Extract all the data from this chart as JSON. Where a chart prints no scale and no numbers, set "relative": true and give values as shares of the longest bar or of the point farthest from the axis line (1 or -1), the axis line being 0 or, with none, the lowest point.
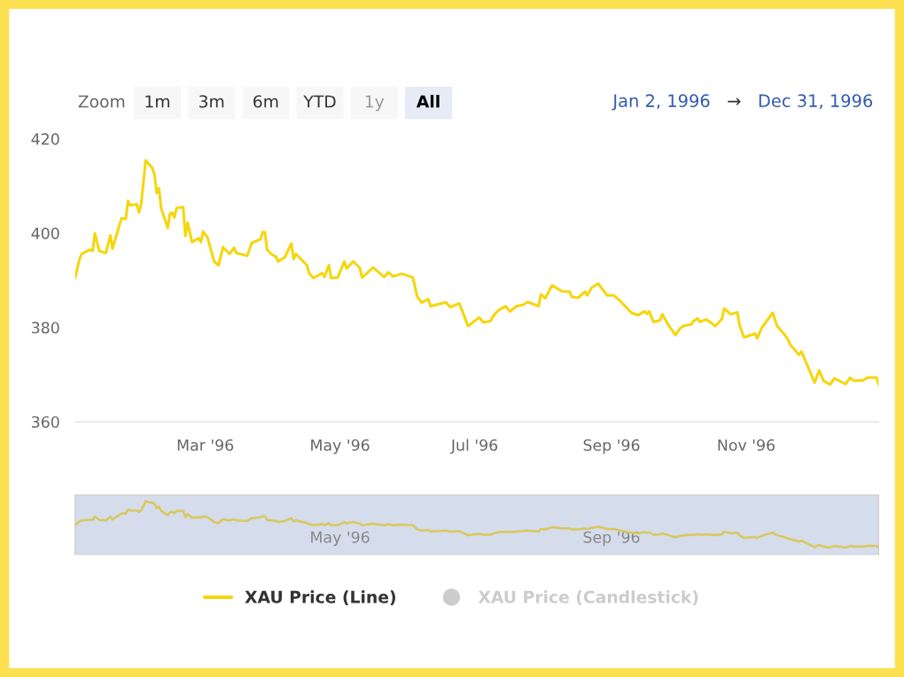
{
  "chart_data": [
    {
      "type": "line",
      "annotations": [
        "Zoom",
        "1m",
        "3m",
        "6m",
        "YTD",
        "1y",
        "All",
        "Jan 2, 1996",
        "→",
        "Dec 31, 1996"
      ],
      "x": [
        "1996-01-02",
        "1996-01-04",
        "1996-01-05",
        "1996-01-09",
        "1996-01-10",
        "1996-01-11",
        "1996-01-13",
        "1996-01-16",
        "1996-01-18",
        "1996-01-19",
        "1996-01-23",
        "1996-01-25",
        "1996-01-26",
        "1996-01-27",
        "1996-01-30",
        "1996-01-31",
        "1996-02-01",
        "1996-02-03",
        "1996-02-06",
        "1996-02-07",
        "1996-02-08",
        "1996-02-09",
        "1996-02-10",
        "1996-02-13",
        "1996-02-14",
        "1996-02-15",
        "1996-02-16",
        "1996-02-17",
        "1996-02-20",
        "1996-02-21",
        "1996-02-22",
        "1996-02-24",
        "1996-02-27",
        "1996-02-28",
        "1996-02-29",
        "1996-03-02",
        "1996-03-05",
        "1996-03-07",
        "1996-03-09",
        "1996-03-12",
        "1996-03-14",
        "1996-03-15",
        "1996-03-20",
        "1996-03-22",
        "1996-03-26",
        "1996-03-27",
        "1996-03-28",
        "1996-03-29",
        "1996-03-31",
        "1996-04-02",
        "1996-04-03",
        "1996-04-06",
        "1996-04-09",
        "1996-04-10",
        "1996-04-11",
        "1996-04-16",
        "1996-04-17",
        "1996-04-19",
        "1996-04-23",
        "1996-04-24",
        "1996-04-26",
        "1996-04-27",
        "1996-04-30",
        "1996-05-03",
        "1996-05-04",
        "1996-05-07",
        "1996-05-10",
        "1996-05-11",
        "1996-05-13",
        "1996-05-16",
        "1996-05-21",
        "1996-05-23",
        "1996-05-25",
        "1996-05-29",
        "1996-06-03",
        "1996-06-05",
        "1996-06-07",
        "1996-06-10",
        "1996-06-11",
        "1996-06-18",
        "1996-06-20",
        "1996-06-24",
        "1996-06-26",
        "1996-06-28",
        "1996-07-03",
        "1996-07-05",
        "1996-07-08",
        "1996-07-10",
        "1996-07-12",
        "1996-07-15",
        "1996-07-17",
        "1996-07-20",
        "1996-07-23",
        "1996-07-25",
        "1996-07-30",
        "1996-07-31",
        "1996-08-02",
        "1996-08-05",
        "1996-08-08",
        "1996-08-10",
        "1996-08-13",
        "1996-08-14",
        "1996-08-17",
        "1996-08-20",
        "1996-08-21",
        "1996-08-23",
        "1996-08-26",
        "1996-08-30",
        "1996-09-02",
        "1996-09-05",
        "1996-09-10",
        "1996-09-13",
        "1996-09-16",
        "1996-09-17",
        "1996-09-18",
        "1996-09-20",
        "1996-09-23",
        "1996-09-24",
        "1996-09-27",
        "1996-09-30",
        "1996-10-02",
        "1996-10-04",
        "1996-10-07",
        "1996-10-08",
        "1996-10-10",
        "1996-10-11",
        "1996-10-14",
        "1996-10-18",
        "1996-10-21",
        "1996-10-22",
        "1996-10-25",
        "1996-10-28",
        "1996-10-29",
        "1996-10-31",
        "1996-11-05",
        "1996-11-06",
        "1996-11-08",
        "1996-11-13",
        "1996-11-15",
        "1996-11-18",
        "1996-11-20",
        "1996-11-21",
        "1996-11-25",
        "1996-11-26",
        "1996-12-02",
        "1996-12-04",
        "1996-12-06",
        "1996-12-09",
        "1996-12-11",
        "1996-12-16",
        "1996-12-18",
        "1996-12-20",
        "1996-12-24",
        "1996-12-26",
        "1996-12-30",
        "1996-12-31"
      ],
      "series": [
        {
          "name": "XAU Price (Line)",
          "color": "#f5d60f",
          "values": [
            390.5,
            394.4,
            395.6,
            396.5,
            396.2,
            399.9,
            396.2,
            395.8,
            399.5,
            396.7,
            403.1,
            403.0,
            406.8,
            405.9,
            406.1,
            404.4,
            406.3,
            415.4,
            413.8,
            412.4,
            408.5,
            409.5,
            405.3,
            401.1,
            404.1,
            404.3,
            403.3,
            405.3,
            405.5,
            399.4,
            402.2,
            398.1,
            398.9,
            398.1,
            400.3,
            399.1,
            394.0,
            393.2,
            397.0,
            395.6,
            396.9,
            395.8,
            395.2,
            397.9,
            398.7,
            400.2,
            400.2,
            396.5,
            395.5,
            395.0,
            394.0,
            394.9,
            397.8,
            394.5,
            395.6,
            393.2,
            391.5,
            390.5,
            391.5,
            390.7,
            393.2,
            390.5,
            390.6,
            394.0,
            392.5,
            394.0,
            392.6,
            390.6,
            391.4,
            392.7,
            390.7,
            391.7,
            390.8,
            391.4,
            390.6,
            386.5,
            385.3,
            386.0,
            384.5,
            385.3,
            384.3,
            385.1,
            382.8,
            380.3,
            382.1,
            381.1,
            381.3,
            382.8,
            383.7,
            384.5,
            383.4,
            384.5,
            384.8,
            385.4,
            384.5,
            387.0,
            386.2,
            388.9,
            388.1,
            387.6,
            387.6,
            386.5,
            386.3,
            387.6,
            386.8,
            388.4,
            389.3,
            386.8,
            386.8,
            385.6,
            383.1,
            382.6,
            383.4,
            382.9,
            383.4,
            381.2,
            381.5,
            382.8,
            380.3,
            378.4,
            379.8,
            380.4,
            380.6,
            381.3,
            381.9,
            381.2,
            381.7,
            380.3,
            381.8,
            384.0,
            382.8,
            383.2,
            380.4,
            377.9,
            378.7,
            377.7,
            379.9,
            383.1,
            380.3,
            378.7,
            377.4,
            376.3,
            374.2,
            374.9,
            368.3,
            370.9,
            368.7,
            367.9,
            369.2,
            368.0,
            369.3,
            368.7,
            368.8,
            369.4,
            369.4,
            367.9
          ]
        },
        {
          "name": "XAU Price (Candlestick)",
          "color": "#cccccc",
          "values": [
            null,
            null,
            null,
            null,
            null,
            null,
            null,
            null,
            null,
            null,
            null,
            null,
            null,
            null,
            null,
            null,
            null,
            null,
            null,
            null,
            null,
            null,
            null,
            null,
            null,
            null,
            null,
            null,
            null,
            null,
            null,
            null,
            null,
            null,
            null,
            null,
            null,
            null,
            null,
            null,
            null,
            null,
            null,
            null,
            null,
            null,
            null,
            null,
            null,
            null,
            null,
            null,
            null,
            null,
            null,
            null,
            null,
            null,
            null,
            null,
            null,
            null,
            null,
            null,
            null,
            null,
            null,
            null,
            null,
            null,
            null,
            null,
            null,
            null,
            null,
            null,
            null,
            null,
            null,
            null,
            null,
            null,
            null,
            null,
            null,
            null,
            null,
            null,
            null,
            null,
            null,
            null,
            null,
            null,
            null,
            null,
            null,
            null,
            null,
            null,
            null,
            null,
            null,
            null,
            null,
            null,
            null,
            null,
            null,
            null,
            null,
            null,
            null,
            null,
            null,
            null,
            null,
            null,
            null,
            null,
            null,
            null,
            null,
            null,
            null,
            null,
            null,
            null,
            null,
            null,
            null,
            null,
            null,
            null,
            null,
            null,
            null,
            null,
            null,
            null,
            null,
            null,
            null,
            null,
            null,
            null,
            null,
            null,
            null,
            null,
            null,
            null,
            null,
            null,
            null,
            null
          ]
        }
      ],
      "xlim": [
        "1996-01-02",
        "1996-12-31"
      ],
      "xticks": [
        {
          "value": "1996-03-01",
          "label": "Mar '96"
        },
        {
          "value": "1996-05-01",
          "label": "May '96"
        },
        {
          "value": "1996-07-01",
          "label": "Jul '96"
        },
        {
          "value": "1996-09-01",
          "label": "Sep '96"
        },
        {
          "value": "1996-11-01",
          "label": "Nov '96"
        }
      ],
      "ylim": [
        360,
        420
      ],
      "yticks": [
        360,
        380,
        400,
        420
      ],
      "grid": false,
      "legend": "bottom"
    },
    {
      "type": "line",
      "x": [
        "1996-01-02",
        "1996-01-04",
        "1996-01-05",
        "1996-01-09",
        "1996-01-10",
        "1996-01-11",
        "1996-01-13",
        "1996-01-16",
        "1996-01-18",
        "1996-01-19",
        "1996-01-23",
        "1996-01-25",
        "1996-01-26",
        "1996-01-27",
        "1996-01-30",
        "1996-01-31",
        "1996-02-01",
        "1996-02-03",
        "1996-02-06",
        "1996-02-07",
        "1996-02-08",
        "1996-02-09",
        "1996-02-10",
        "1996-02-13",
        "1996-02-14",
        "1996-02-15",
        "1996-02-16",
        "1996-02-17",
        "1996-02-20",
        "1996-02-21",
        "1996-02-22",
        "1996-02-24",
        "1996-02-27",
        "1996-02-28",
        "1996-02-29",
        "1996-03-02",
        "1996-03-05",
        "1996-03-07",
        "1996-03-09",
        "1996-03-12",
        "1996-03-14",
        "1996-03-15",
        "1996-03-20",
        "1996-03-22",
        "1996-03-26",
        "1996-03-27",
        "1996-03-28",
        "1996-03-29",
        "1996-03-31",
        "1996-04-02",
        "1996-04-03",
        "1996-04-06",
        "1996-04-09",
        "1996-04-10",
        "1996-04-11",
        "1996-04-16",
        "1996-04-17",
        "1996-04-19",
        "1996-04-23",
        "1996-04-24",
        "1996-04-26",
        "1996-04-27",
        "1996-04-30",
        "1996-05-03",
        "1996-05-04",
        "1996-05-07",
        "1996-05-10",
        "1996-05-11",
        "1996-05-13",
        "1996-05-16",
        "1996-05-21",
        "1996-05-23",
        "1996-05-25",
        "1996-05-29",
        "1996-06-03",
        "1996-06-05",
        "1996-06-07",
        "1996-06-10",
        "1996-06-11",
        "1996-06-18",
        "1996-06-20",
        "1996-06-24",
        "1996-06-26",
        "1996-06-28",
        "1996-07-03",
        "1996-07-05",
        "1996-07-08",
        "1996-07-10",
        "1996-07-12",
        "1996-07-15",
        "1996-07-17",
        "1996-07-20",
        "1996-07-23",
        "1996-07-25",
        "1996-07-30",
        "1996-07-31",
        "1996-08-02",
        "1996-08-05",
        "1996-08-08",
        "1996-08-10",
        "1996-08-13",
        "1996-08-14",
        "1996-08-17",
        "1996-08-20",
        "1996-08-21",
        "1996-08-23",
        "1996-08-26",
        "1996-08-30",
        "1996-09-02",
        "1996-09-05",
        "1996-09-10",
        "1996-09-13",
        "1996-09-16",
        "1996-09-17",
        "1996-09-18",
        "1996-09-20",
        "1996-09-23",
        "1996-09-24",
        "1996-09-27",
        "1996-09-30",
        "1996-10-02",
        "1996-10-04",
        "1996-10-07",
        "1996-10-08",
        "1996-10-10",
        "1996-10-11",
        "1996-10-14",
        "1996-10-18",
        "1996-10-21",
        "1996-10-22",
        "1996-10-25",
        "1996-10-28",
        "1996-10-29",
        "1996-10-31",
        "1996-11-05",
        "1996-11-06",
        "1996-11-08",
        "1996-11-13",
        "1996-11-15",
        "1996-11-18",
        "1996-11-20",
        "1996-11-21",
        "1996-11-25",
        "1996-11-26",
        "1996-12-02",
        "1996-12-04",
        "1996-12-06",
        "1996-12-09",
        "1996-12-11",
        "1996-12-16",
        "1996-12-18",
        "1996-12-20",
        "1996-12-24",
        "1996-12-26",
        "1996-12-30",
        "1996-12-31"
      ],
      "relative": true,
      "series": [
        {
          "color": "#d9c85a",
          "values": [
            0.55,
            0.62,
            0.64,
            0.65,
            0.65,
            0.71,
            0.65,
            0.64,
            0.71,
            0.66,
            0.77,
            0.77,
            0.84,
            0.83,
            0.83,
            0.8,
            0.83,
            1.0,
            0.97,
            0.95,
            0.87,
            0.9,
            0.82,
            0.74,
            0.79,
            0.8,
            0.78,
            0.82,
            0.82,
            0.7,
            0.76,
            0.69,
            0.7,
            0.69,
            0.72,
            0.7,
            0.61,
            0.59,
            0.66,
            0.64,
            0.66,
            0.64,
            0.63,
            0.68,
            0.7,
            0.72,
            0.72,
            0.65,
            0.64,
            0.63,
            0.61,
            0.63,
            0.68,
            0.62,
            0.64,
            0.59,
            0.57,
            0.55,
            0.57,
            0.55,
            0.59,
            0.55,
            0.55,
            0.61,
            0.58,
            0.61,
            0.58,
            0.55,
            0.56,
            0.58,
            0.55,
            0.57,
            0.55,
            0.56,
            0.55,
            0.47,
            0.45,
            0.46,
            0.43,
            0.45,
            0.43,
            0.44,
            0.4,
            0.36,
            0.39,
            0.37,
            0.37,
            0.4,
            0.42,
            0.43,
            0.42,
            0.43,
            0.44,
            0.45,
            0.43,
            0.48,
            0.47,
            0.51,
            0.5,
            0.49,
            0.49,
            0.47,
            0.47,
            0.49,
            0.48,
            0.5,
            0.52,
            0.48,
            0.48,
            0.45,
            0.41,
            0.4,
            0.42,
            0.41,
            0.42,
            0.37,
            0.38,
            0.4,
            0.36,
            0.32,
            0.35,
            0.36,
            0.37,
            0.37,
            0.38,
            0.37,
            0.38,
            0.36,
            0.38,
            0.43,
            0.4,
            0.41,
            0.36,
            0.31,
            0.33,
            0.31,
            0.35,
            0.41,
            0.36,
            0.33,
            0.3,
            0.29,
            0.24,
            0.26,
            0.14,
            0.18,
            0.15,
            0.13,
            0.16,
            0.13,
            0.16,
            0.15,
            0.15,
            0.16,
            0.16,
            0.13
          ]
        }
      ],
      "bands": [
        {
          "axis": "x",
          "from": "1996-01-02",
          "to": "1996-12-31",
          "color": "#d5dcec"
        }
      ],
      "xlim": [
        "1996-01-02",
        "1996-12-31"
      ],
      "xticks": [
        {
          "value": "1996-05-01",
          "label": "May '96"
        },
        {
          "value": "1996-09-01",
          "label": "Sep '96"
        }
      ],
      "tick_labels": "x"
    }
  ]
}
